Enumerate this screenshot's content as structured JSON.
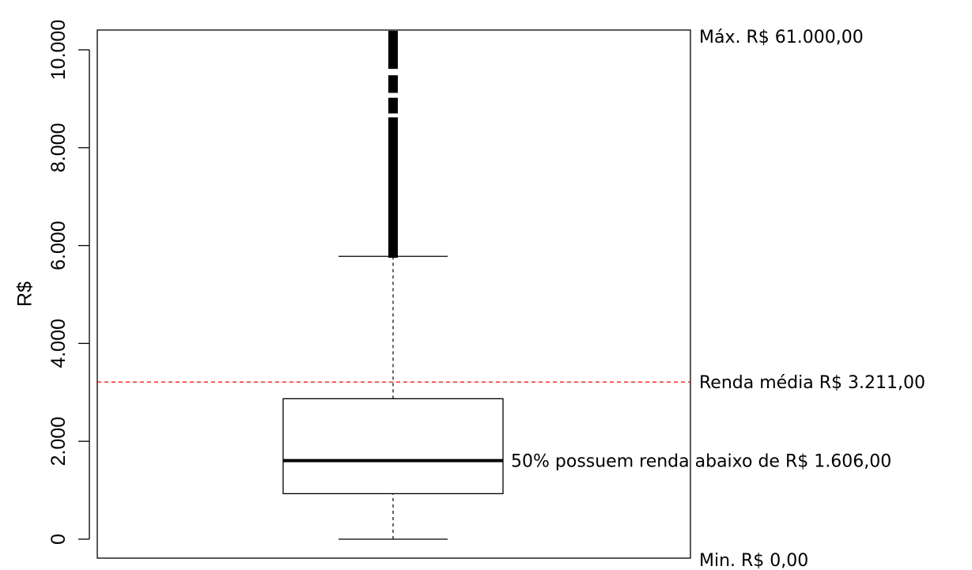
{
  "chart_data": {
    "type": "box",
    "title": "",
    "xlabel": "",
    "ylabel": "R$",
    "ylim": [
      -380,
      10400
    ],
    "yticks": [
      0,
      2000,
      4000,
      6000,
      8000,
      10000
    ],
    "ytick_labels": [
      "0",
      "2.000",
      "4.000",
      "6.000",
      "8.000",
      "10.000"
    ],
    "box": {
      "min": 0,
      "q1": 930,
      "median": 1606,
      "q3": 2870,
      "whisker_high": 5780,
      "max": 61000
    },
    "mean": 3211,
    "mean_color": "#ff0000",
    "outliers_visible_range": [
      5750,
      10400
    ],
    "annotations": {
      "max": "Máx. R$ 61.000,00",
      "mean": "Renda média R$ 3.211,00",
      "median": "50% possuem renda abaixo de R$ 1.606,00",
      "min": "Min. R$ 0,00"
    }
  }
}
